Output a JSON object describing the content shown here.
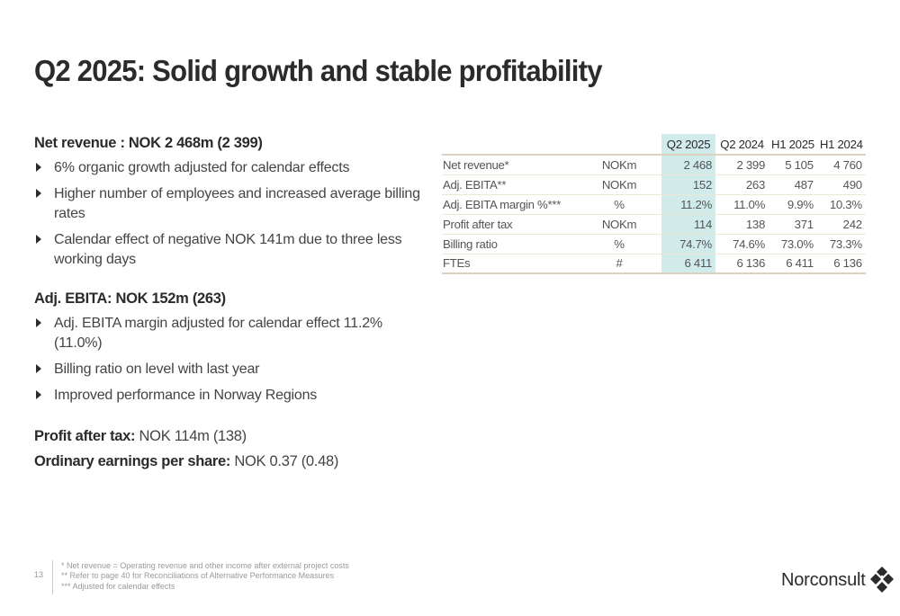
{
  "title": "Q2 2025: Solid growth and stable profitability",
  "net_revenue": {
    "heading": "Net revenue : NOK 2 468m (2 399)",
    "bullets": [
      "6% organic growth adjusted for calendar effects",
      "Higher number of employees and increased average billing rates",
      "Calendar effect of negative NOK 141m due to three less working days"
    ]
  },
  "ebita": {
    "heading": "Adj. EBITA: NOK 152m (263)",
    "bullets": [
      "Adj. EBITA margin adjusted for calendar effect 11.2% (11.0%)",
      "Billing ratio on level with last year",
      "Improved performance in Norway Regions"
    ]
  },
  "profit": {
    "label": "Profit after tax:",
    "value": " NOK 114m (138)"
  },
  "eps": {
    "label": "Ordinary earnings per share:",
    "value": " NOK 0.37 (0.48)"
  },
  "table": {
    "headers": [
      "Q2 2025",
      "Q2 2024",
      "H1 2025",
      "H1 2024"
    ],
    "rows": [
      {
        "label": "Net revenue*",
        "unit": "NOKm",
        "values": [
          "2 468",
          "2 399",
          "5 105",
          "4 760"
        ]
      },
      {
        "label": "Adj. EBITA**",
        "unit": "NOKm",
        "values": [
          "152",
          "263",
          "487",
          "490"
        ]
      },
      {
        "label": "Adj. EBITA margin %***",
        "unit": "%",
        "values": [
          "11.2%",
          "11.0%",
          "9.9%",
          "10.3%"
        ]
      },
      {
        "label": "Profit after tax",
        "unit": "NOKm",
        "values": [
          "114",
          "138",
          "371",
          "242"
        ]
      },
      {
        "label": "Billing ratio",
        "unit": "%",
        "values": [
          "74.7%",
          "74.6%",
          "73.0%",
          "73.3%"
        ]
      },
      {
        "label": "FTEs",
        "unit": "#",
        "values": [
          "6 411",
          "6 136",
          "6 411",
          "6 136"
        ]
      }
    ],
    "highlight_color": "#d0ebea"
  },
  "page_number": "13",
  "footnotes": [
    "* Net revenue = Operating revenue and other income after external project costs",
    "** Refer to page 40 for Reconciliations of Alternative Performance Measures",
    "*** Adjusted for calendar effects"
  ],
  "logo": {
    "text": "Norconsult",
    "icon": "diamond-cluster-icon"
  }
}
